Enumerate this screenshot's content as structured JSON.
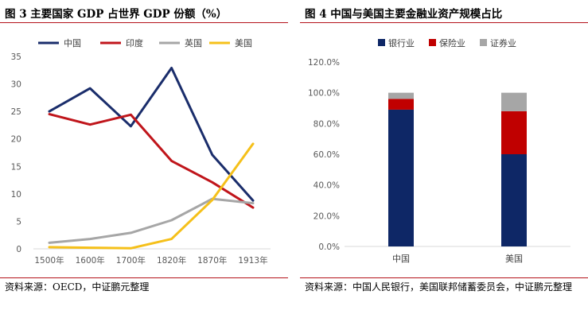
{
  "left": {
    "title": "图 3 主要国家 GDP 占世界 GDP 份额（%）",
    "source": "资料来源：OECD，中证鹏元整理"
  },
  "right": {
    "title": "图 4 中国与美国主要金融业资产规模占比",
    "source": "资料来源：中国人民银行，美国联邦储蓄委员会，中证鹏元整理"
  },
  "chart_data": [
    {
      "type": "line",
      "title": "图 3 主要国家 GDP 占世界 GDP 份额（%）",
      "xlabel": "",
      "ylabel": "",
      "categories": [
        "1500年",
        "1600年",
        "1700年",
        "1820年",
        "1870年",
        "1913年"
      ],
      "ylim": [
        0,
        35
      ],
      "yticks": [
        0,
        5,
        10,
        15,
        20,
        25,
        30,
        35
      ],
      "grid": false,
      "legend_position": "top",
      "series": [
        {
          "name": "中国",
          "color": "#1a2d6b",
          "values": [
            25.0,
            29.2,
            22.3,
            32.9,
            17.1,
            8.8
          ]
        },
        {
          "name": "印度",
          "color": "#c0151b",
          "values": [
            24.5,
            22.6,
            24.4,
            16.0,
            12.1,
            7.5
          ]
        },
        {
          "name": "英国",
          "color": "#a6a6a6",
          "values": [
            1.1,
            1.8,
            2.9,
            5.2,
            9.1,
            8.3
          ]
        },
        {
          "name": "美国",
          "color": "#f5c01a",
          "values": [
            0.3,
            0.2,
            0.1,
            1.8,
            8.9,
            19.1
          ]
        }
      ]
    },
    {
      "type": "bar",
      "stacked": true,
      "title": "图 4 中国与美国主要金融业资产规模占比",
      "xlabel": "",
      "ylabel": "",
      "categories": [
        "中国",
        "美国"
      ],
      "ylim": [
        0,
        1.2
      ],
      "yticks": [
        "0.0%",
        "20.0%",
        "40.0%",
        "60.0%",
        "80.0%",
        "100.0%",
        "120.0%"
      ],
      "grid": false,
      "legend_position": "top",
      "series": [
        {
          "name": "银行业",
          "color": "#0e2766",
          "values": [
            0.89,
            0.6
          ]
        },
        {
          "name": "保险业",
          "color": "#c00000",
          "values": [
            0.07,
            0.28
          ]
        },
        {
          "name": "证券业",
          "color": "#a6a6a6",
          "values": [
            0.04,
            0.12
          ]
        }
      ]
    }
  ]
}
